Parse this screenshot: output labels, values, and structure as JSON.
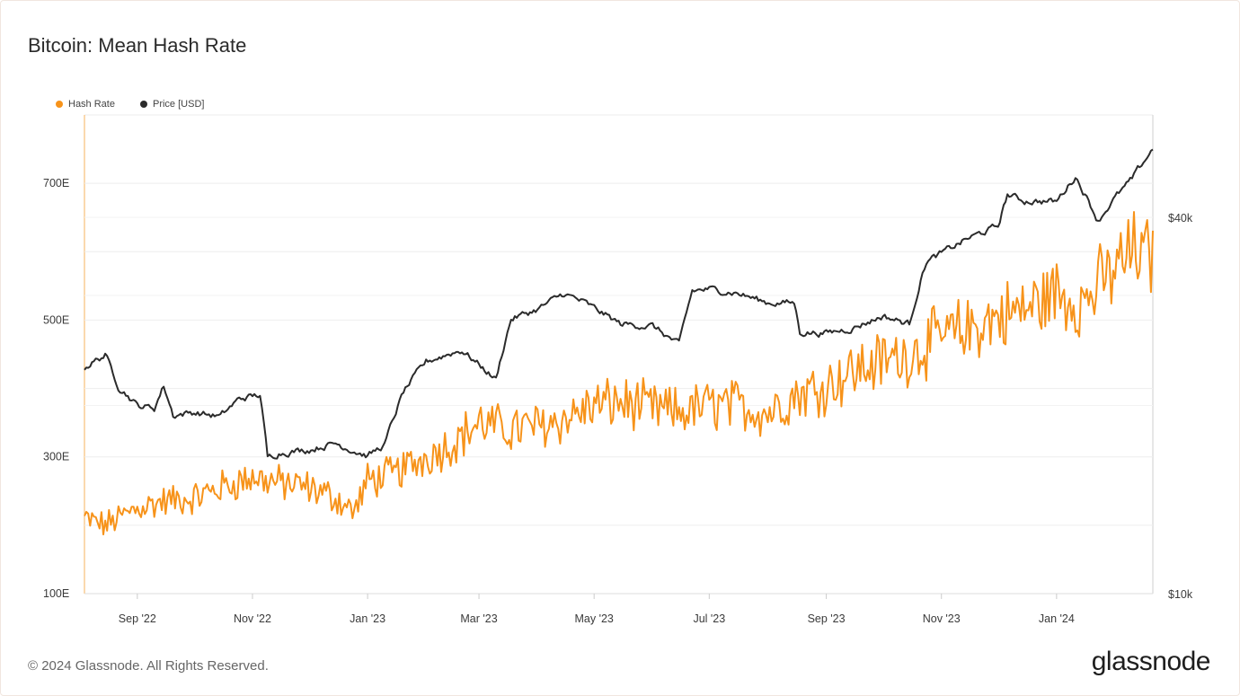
{
  "title": "Bitcoin: Mean Hash Rate",
  "footer": "© 2024 Glassnode. All Rights Reserved.",
  "brand": "glassnode",
  "legend": [
    {
      "label": "Hash Rate",
      "color": "#f7931a"
    },
    {
      "label": "Price [USD]",
      "color": "#2b2b2b"
    }
  ],
  "chart_data": {
    "type": "line",
    "x_range": [
      "2022-08-04",
      "2024-02-21"
    ],
    "x_ticks": [
      "Sep '22",
      "Nov '22",
      "Jan '23",
      "Mar '23",
      "May '23",
      "Jul '23",
      "Sep '23",
      "Nov '23",
      "Jan '24"
    ],
    "y_left": {
      "ticks": [
        "100E",
        "300E",
        "500E",
        "700E"
      ],
      "range": [
        100,
        800
      ]
    },
    "y_right": {
      "ticks": [
        "$10k",
        "$40k"
      ],
      "scale": "log"
    },
    "grid": true,
    "legend_position": "top-left",
    "series": [
      {
        "name": "Hash Rate",
        "color": "#f7931a",
        "axis": "left",
        "x": [
          "2022-08-04",
          "2022-08-15",
          "2022-09-01",
          "2022-09-15",
          "2022-10-01",
          "2022-10-15",
          "2022-11-01",
          "2022-11-15",
          "2022-12-01",
          "2022-12-15",
          "2022-12-25",
          "2023-01-01",
          "2023-01-15",
          "2023-02-01",
          "2023-02-15",
          "2023-03-01",
          "2023-03-15",
          "2023-04-01",
          "2023-04-15",
          "2023-05-01",
          "2023-05-15",
          "2023-06-01",
          "2023-06-15",
          "2023-07-01",
          "2023-07-15",
          "2023-08-01",
          "2023-08-15",
          "2023-09-01",
          "2023-09-15",
          "2023-10-01",
          "2023-10-15",
          "2023-11-01",
          "2023-11-15",
          "2023-12-01",
          "2023-12-15",
          "2024-01-01",
          "2024-01-15",
          "2024-02-01",
          "2024-02-10",
          "2024-02-21"
        ],
        "values": [
          210,
          200,
          225,
          235,
          240,
          255,
          270,
          262,
          255,
          240,
          220,
          265,
          275,
          300,
          320,
          350,
          340,
          345,
          355,
          375,
          380,
          370,
          365,
          375,
          375,
          365,
          390,
          405,
          425,
          440,
          450,
          475,
          485,
          505,
          515,
          540,
          525,
          575,
          600,
          590
        ]
      },
      {
        "name": "Price [USD]",
        "color": "#2b2b2b",
        "axis": "right",
        "x": [
          "2022-08-04",
          "2022-08-15",
          "2022-08-22",
          "2022-09-01",
          "2022-09-10",
          "2022-09-15",
          "2022-09-20",
          "2022-10-01",
          "2022-10-15",
          "2022-10-25",
          "2022-11-05",
          "2022-11-09",
          "2022-11-15",
          "2022-12-01",
          "2022-12-15",
          "2023-01-01",
          "2023-01-10",
          "2023-01-20",
          "2023-02-01",
          "2023-02-15",
          "2023-02-20",
          "2023-03-10",
          "2023-03-18",
          "2023-04-01",
          "2023-04-15",
          "2023-04-25",
          "2023-05-15",
          "2023-06-01",
          "2023-06-15",
          "2023-06-22",
          "2023-07-01",
          "2023-07-15",
          "2023-08-01",
          "2023-08-15",
          "2023-08-18",
          "2023-09-01",
          "2023-09-15",
          "2023-10-01",
          "2023-10-15",
          "2023-10-24",
          "2023-11-01",
          "2023-11-15",
          "2023-12-01",
          "2023-12-06",
          "2023-12-15",
          "2024-01-01",
          "2024-01-11",
          "2024-01-23",
          "2024-02-01",
          "2024-02-10",
          "2024-02-21"
        ],
        "values": [
          23000,
          24100,
          21500,
          20000,
          19800,
          21500,
          19300,
          19500,
          19200,
          20500,
          20800,
          16500,
          16800,
          17000,
          17400,
          16600,
          17300,
          21000,
          23500,
          24300,
          24500,
          22000,
          27500,
          28500,
          30200,
          29300,
          27000,
          26800,
          25000,
          30500,
          30700,
          30300,
          29200,
          29200,
          26200,
          26100,
          26600,
          27800,
          27000,
          34000,
          35000,
          37000,
          38700,
          43500,
          42500,
          42400,
          46500,
          39500,
          43000,
          46000,
          51500
        ]
      }
    ]
  }
}
